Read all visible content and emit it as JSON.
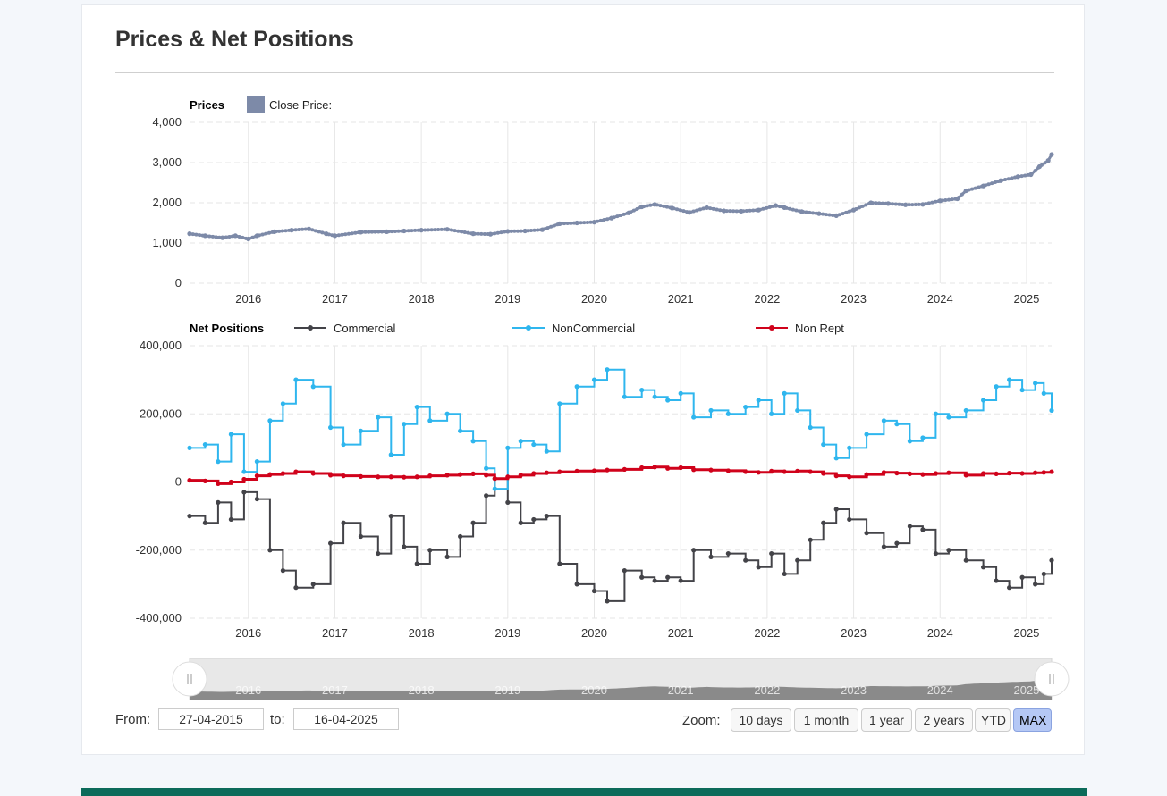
{
  "card": {
    "title": "Prices & Net Positions"
  },
  "controls": {
    "from_label": "From:",
    "from_value": "27-04-2015",
    "to_label": "to:",
    "to_value": "16-04-2025",
    "zoom_label": "Zoom:",
    "zoom_buttons": [
      "10 days",
      "1 month",
      "1 year",
      "2 years",
      "YTD",
      "MAX"
    ],
    "active_zoom": "MAX"
  },
  "chart_data": [
    {
      "type": "scatter",
      "title": "Prices",
      "legend": [
        {
          "name": "Close Price:",
          "color": "#7d8aa8"
        }
      ],
      "x_ticks": [
        "2016",
        "2017",
        "2018",
        "2019",
        "2020",
        "2021",
        "2022",
        "2023",
        "2024",
        "2025"
      ],
      "y_ticks": [
        "0",
        "1,000",
        "2,000",
        "3,000",
        "4,000"
      ],
      "xlim": [
        2015.32,
        2025.29
      ],
      "ylim": [
        0,
        4000
      ],
      "series": [
        {
          "name": "Close Price:",
          "color": "#7d8aa8",
          "x": [
            2015.32,
            2015.5,
            2015.7,
            2015.85,
            2016.0,
            2016.1,
            2016.3,
            2016.5,
            2016.7,
            2016.9,
            2017.0,
            2017.3,
            2017.6,
            2017.8,
            2018.0,
            2018.3,
            2018.6,
            2018.8,
            2019.0,
            2019.2,
            2019.4,
            2019.6,
            2019.8,
            2020.0,
            2020.2,
            2020.4,
            2020.55,
            2020.7,
            2020.9,
            2021.1,
            2021.3,
            2021.5,
            2021.7,
            2021.9,
            2022.1,
            2022.2,
            2022.4,
            2022.6,
            2022.8,
            2023.0,
            2023.2,
            2023.4,
            2023.6,
            2023.8,
            2024.0,
            2024.2,
            2024.3,
            2024.5,
            2024.7,
            2024.9,
            2025.05,
            2025.15,
            2025.25,
            2025.29
          ],
          "y": [
            1230,
            1180,
            1130,
            1180,
            1100,
            1180,
            1280,
            1320,
            1350,
            1230,
            1180,
            1270,
            1280,
            1300,
            1320,
            1340,
            1230,
            1220,
            1290,
            1300,
            1330,
            1480,
            1500,
            1520,
            1620,
            1750,
            1900,
            1960,
            1870,
            1760,
            1880,
            1800,
            1790,
            1820,
            1930,
            1880,
            1780,
            1730,
            1680,
            1820,
            2000,
            1980,
            1950,
            1960,
            2050,
            2100,
            2300,
            2420,
            2550,
            2650,
            2700,
            2900,
            3050,
            3200
          ]
        }
      ]
    },
    {
      "type": "line",
      "title": "Net Positions",
      "legend": [
        {
          "name": "Commercial",
          "color": "#434348"
        },
        {
          "name": "NonCommercial",
          "color": "#2fb6ee"
        },
        {
          "name": "Non Rept",
          "color": "#d0021b"
        }
      ],
      "x_ticks": [
        "2016",
        "2017",
        "2018",
        "2019",
        "2020",
        "2021",
        "2022",
        "2023",
        "2024",
        "2025"
      ],
      "y_ticks": [
        "-400,000",
        "-200,000",
        "0",
        "200,000",
        "400,000"
      ],
      "xlim": [
        2015.32,
        2025.29
      ],
      "ylim": [
        -400000,
        400000
      ],
      "categories": [
        2015.32,
        2015.5,
        2015.65,
        2015.8,
        2015.95,
        2016.1,
        2016.25,
        2016.4,
        2016.55,
        2016.75,
        2016.95,
        2017.1,
        2017.3,
        2017.5,
        2017.65,
        2017.8,
        2017.95,
        2018.1,
        2018.3,
        2018.45,
        2018.6,
        2018.75,
        2018.85,
        2019.0,
        2019.15,
        2019.3,
        2019.45,
        2019.6,
        2019.8,
        2020.0,
        2020.15,
        2020.35,
        2020.55,
        2020.7,
        2020.85,
        2021.0,
        2021.15,
        2021.35,
        2021.55,
        2021.75,
        2021.9,
        2022.05,
        2022.2,
        2022.35,
        2022.5,
        2022.65,
        2022.8,
        2022.95,
        2023.15,
        2023.35,
        2023.5,
        2023.65,
        2023.8,
        2023.95,
        2024.1,
        2024.3,
        2024.5,
        2024.65,
        2024.8,
        2024.95,
        2025.1,
        2025.2,
        2025.29
      ],
      "series": [
        {
          "name": "Commercial",
          "color": "#434348",
          "values": [
            -100000,
            -120000,
            -60000,
            -110000,
            -30000,
            -50000,
            -200000,
            -260000,
            -310000,
            -300000,
            -180000,
            -120000,
            -160000,
            -210000,
            -100000,
            -190000,
            -240000,
            -200000,
            -220000,
            -160000,
            -120000,
            -40000,
            10000,
            -60000,
            -120000,
            -110000,
            -100000,
            -240000,
            -300000,
            -320000,
            -350000,
            -260000,
            -280000,
            -290000,
            -280000,
            -290000,
            -200000,
            -220000,
            -210000,
            -230000,
            -250000,
            -210000,
            -270000,
            -230000,
            -170000,
            -120000,
            -80000,
            -110000,
            -150000,
            -190000,
            -180000,
            -130000,
            -140000,
            -210000,
            -200000,
            -230000,
            -250000,
            -290000,
            -310000,
            -280000,
            -300000,
            -270000,
            -230000
          ]
        },
        {
          "name": "NonCommercial",
          "color": "#2fb6ee",
          "values": [
            100000,
            110000,
            60000,
            140000,
            30000,
            60000,
            180000,
            230000,
            300000,
            280000,
            160000,
            110000,
            150000,
            190000,
            80000,
            170000,
            220000,
            180000,
            200000,
            150000,
            120000,
            40000,
            -20000,
            100000,
            120000,
            110000,
            90000,
            230000,
            280000,
            300000,
            330000,
            250000,
            270000,
            250000,
            240000,
            260000,
            190000,
            210000,
            200000,
            220000,
            240000,
            200000,
            260000,
            210000,
            160000,
            110000,
            70000,
            100000,
            140000,
            180000,
            170000,
            120000,
            130000,
            200000,
            190000,
            210000,
            240000,
            280000,
            300000,
            270000,
            290000,
            260000,
            210000
          ]
        },
        {
          "name": "Non Rept",
          "color": "#d0021b",
          "values": [
            5000,
            3000,
            -5000,
            0,
            8000,
            18000,
            22000,
            25000,
            30000,
            25000,
            20000,
            18000,
            16000,
            15000,
            15000,
            14000,
            15000,
            18000,
            20000,
            22000,
            24000,
            20000,
            10000,
            15000,
            20000,
            25000,
            27000,
            30000,
            32000,
            33000,
            35000,
            37000,
            42000,
            44000,
            40000,
            42000,
            36000,
            35000,
            33000,
            30000,
            28000,
            32000,
            30000,
            32000,
            30000,
            25000,
            18000,
            15000,
            22000,
            28000,
            26000,
            24000,
            22000,
            25000,
            27000,
            20000,
            25000,
            24000,
            26000,
            25000,
            27000,
            28000,
            30000
          ]
        }
      ]
    },
    {
      "type": "area",
      "title": "",
      "x_ticks": [
        "2016",
        "2017",
        "2018",
        "2019",
        "2020",
        "2021",
        "2022",
        "2023",
        "2024",
        "2025"
      ],
      "xlim": [
        2015.32,
        2025.29
      ],
      "series": [
        {
          "name": "",
          "color": "#8a8a8a",
          "ref": "Close Price:"
        }
      ]
    }
  ]
}
